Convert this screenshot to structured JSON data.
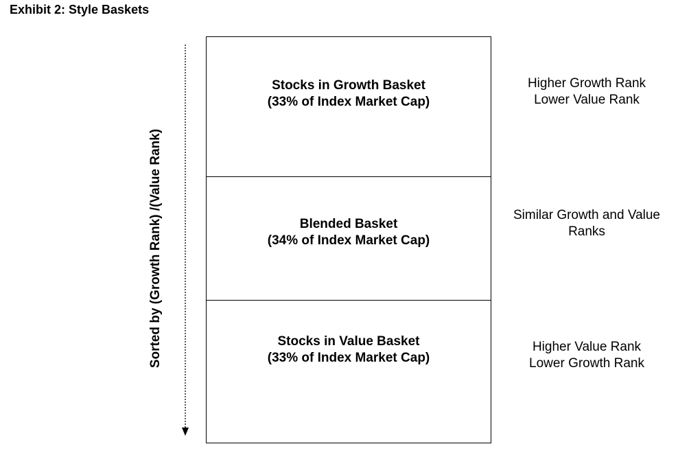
{
  "title": "Exhibit 2: Style Baskets",
  "axis_label": "Sorted by (Growth Rank) /(Value Rank)",
  "baskets": [
    {
      "name": "Stocks in Growth Basket",
      "share": "(33% of Index Market Cap)"
    },
    {
      "name": "Blended Basket",
      "share": "(34% of Index Market Cap)"
    },
    {
      "name": "Stocks in Value Basket",
      "share": "(33% of Index Market Cap)"
    }
  ],
  "ranks": [
    {
      "line1": "Higher Growth Rank",
      "line2": "Lower Value Rank"
    },
    {
      "line1": "Similar Growth and Value",
      "line2": "Ranks"
    },
    {
      "line1": "Higher Value Rank",
      "line2": "Lower Growth Rank"
    }
  ]
}
